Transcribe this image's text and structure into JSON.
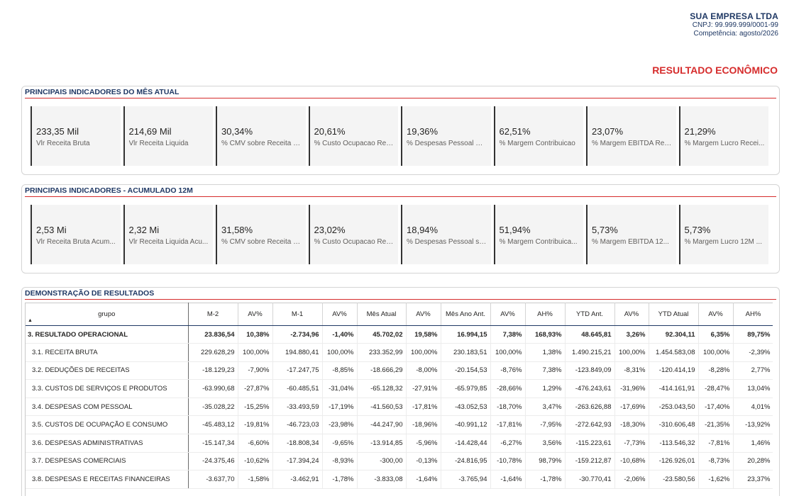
{
  "company": {
    "name": "SUA EMPRESA LTDA",
    "cnpj": "CNPJ: 99.999.999/0001-99",
    "competencia": "Competência: agosto/2026"
  },
  "report_title": "RESULTADO ECONÔMICO",
  "month_panel": {
    "title": "PRINCIPAIS INDICADORES DO MÊS ATUAL",
    "cards": [
      {
        "value": "233,35 Mil",
        "label": "Vlr Receita Bruta"
      },
      {
        "value": "214,69 Mil",
        "label": "Vlr Receita Liquida"
      },
      {
        "value": "30,34%",
        "label": "% CMV sobre Receita L..."
      },
      {
        "value": "20,61%",
        "label": "% Custo Ocupacao Rec..."
      },
      {
        "value": "19,36%",
        "label": "% Despesas Pessoal Re..."
      },
      {
        "value": "62,51%",
        "label": "% Margem Contribuicao"
      },
      {
        "value": "23,07%",
        "label": "% Margem EBITDA Rec..."
      },
      {
        "value": "21,29%",
        "label": "% Margem Lucro Recei..."
      }
    ]
  },
  "panel_12m": {
    "title": "PRINCIPAIS INDICADORES - ACUMULADO 12M",
    "cards": [
      {
        "value": "2,53 Mi",
        "label": "Vlr Receita Bruta Acum..."
      },
      {
        "value": "2,32 Mi",
        "label": "Vlr Receita Liquida Acu..."
      },
      {
        "value": "31,58%",
        "label": "% CMV sobre Receita L..."
      },
      {
        "value": "23,02%",
        "label": "% Custo Ocupacao Rec..."
      },
      {
        "value": "18,94%",
        "label": "% Despesas Pessoal so..."
      },
      {
        "value": "51,94%",
        "label": "% Margem Contribuica..."
      },
      {
        "value": "5,73%",
        "label": "% Margem EBITDA 12..."
      },
      {
        "value": "5,73%",
        "label": "% Margem Lucro 12M ..."
      }
    ]
  },
  "dre": {
    "title": "DEMONSTRAÇÃO DE RESULTADOS",
    "sort_indicator": "▲",
    "columns": [
      "grupo",
      "M-2",
      "AV%",
      "M-1",
      "AV%",
      "Mês Atual",
      "AV%",
      "Mês Ano Ant.",
      "AV%",
      "AH%",
      "YTD Ant.",
      "AV%",
      "YTD Atual",
      "AV%",
      "AH%"
    ],
    "rows": [
      {
        "bold": true,
        "cells": [
          "3. RESULTADO OPERACIONAL",
          "23.836,54",
          "10,38%",
          "-2.734,96",
          "-1,40%",
          "45.702,02",
          "19,58%",
          "16.994,15",
          "7,38%",
          "168,93%",
          "48.645,81",
          "3,26%",
          "92.304,11",
          "6,35%",
          "89,75%"
        ]
      },
      {
        "bold": false,
        "cells": [
          "3.1. RECEITA BRUTA",
          "229.628,29",
          "100,00%",
          "194.880,41",
          "100,00%",
          "233.352,99",
          "100,00%",
          "230.183,51",
          "100,00%",
          "1,38%",
          "1.490.215,21",
          "100,00%",
          "1.454.583,08",
          "100,00%",
          "-2,39%"
        ]
      },
      {
        "bold": false,
        "cells": [
          "3.2. DEDUÇÕES DE RECEITAS",
          "-18.129,23",
          "-7,90%",
          "-17.247,75",
          "-8,85%",
          "-18.666,29",
          "-8,00%",
          "-20.154,53",
          "-8,76%",
          "7,38%",
          "-123.849,09",
          "-8,31%",
          "-120.414,19",
          "-8,28%",
          "2,77%"
        ]
      },
      {
        "bold": false,
        "cells": [
          "3.3. CUSTOS DE SERVIÇOS E PRODUTOS",
          "-63.990,68",
          "-27,87%",
          "-60.485,51",
          "-31,04%",
          "-65.128,32",
          "-27,91%",
          "-65.979,85",
          "-28,66%",
          "1,29%",
          "-476.243,61",
          "-31,96%",
          "-414.161,91",
          "-28,47%",
          "13,04%"
        ]
      },
      {
        "bold": false,
        "cells": [
          "3.4. DESPESAS COM PESSOAL",
          "-35.028,22",
          "-15,25%",
          "-33.493,59",
          "-17,19%",
          "-41.560,53",
          "-17,81%",
          "-43.052,53",
          "-18,70%",
          "3,47%",
          "-263.626,88",
          "-17,69%",
          "-253.043,50",
          "-17,40%",
          "4,01%"
        ]
      },
      {
        "bold": false,
        "cells": [
          "3.5. CUSTOS DE OCUPAÇÃO E CONSUMO",
          "-45.483,12",
          "-19,81%",
          "-46.723,03",
          "-23,98%",
          "-44.247,90",
          "-18,96%",
          "-40.991,12",
          "-17,81%",
          "-7,95%",
          "-272.642,93",
          "-18,30%",
          "-310.606,48",
          "-21,35%",
          "-13,92%"
        ]
      },
      {
        "bold": false,
        "cells": [
          "3.6. DESPESAS ADMINISTRATIVAS",
          "-15.147,34",
          "-6,60%",
          "-18.808,34",
          "-9,65%",
          "-13.914,85",
          "-5,96%",
          "-14.428,44",
          "-6,27%",
          "3,56%",
          "-115.223,61",
          "-7,73%",
          "-113.546,32",
          "-7,81%",
          "1,46%"
        ]
      },
      {
        "bold": false,
        "cells": [
          "3.7. DESPESAS COMERCIAIS",
          "-24.375,46",
          "-10,62%",
          "-17.394,24",
          "-8,93%",
          "-300,00",
          "-0,13%",
          "-24.816,95",
          "-10,78%",
          "98,79%",
          "-159.212,87",
          "-10,68%",
          "-126.926,01",
          "-8,73%",
          "20,28%"
        ]
      },
      {
        "bold": false,
        "cells": [
          "3.8. DESPESAS E RECEITAS FINANCEIRAS",
          "-3.637,70",
          "-1,58%",
          "-3.462,91",
          "-1,78%",
          "-3.833,08",
          "-1,64%",
          "-3.765,94",
          "-1,64%",
          "-1,78%",
          "-30.770,41",
          "-2,06%",
          "-23.580,56",
          "-1,62%",
          "23,37%"
        ]
      }
    ]
  }
}
